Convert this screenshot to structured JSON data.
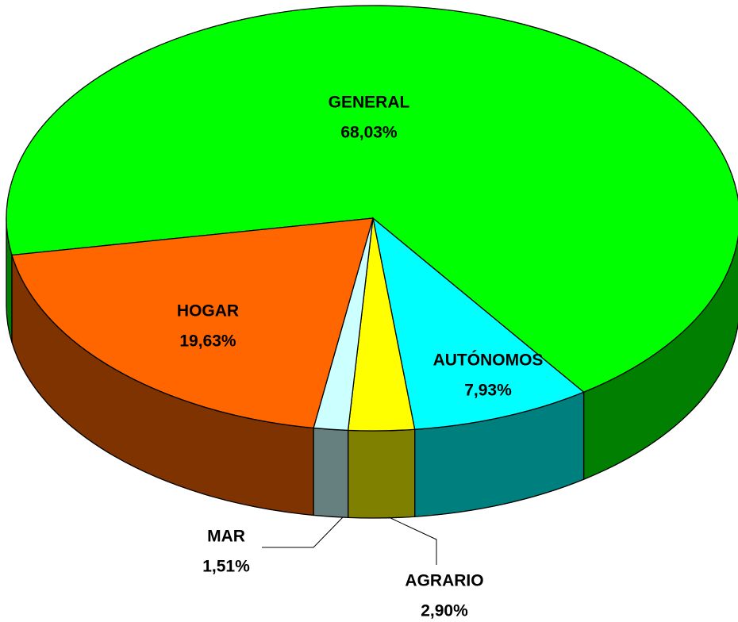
{
  "chart_data": {
    "type": "pie3d",
    "categories": [
      "GENERAL",
      "AUTÓNOMOS",
      "AGRARIO",
      "MAR",
      "HOGAR"
    ],
    "values": [
      68.03,
      7.93,
      2.9,
      1.51,
      19.63
    ],
    "value_labels": [
      "68,03%",
      "7,93%",
      "2,90%",
      "1,51%",
      "19,63%"
    ],
    "colors": [
      "#00ff00",
      "#00ffff",
      "#ffff00",
      "#ccffff",
      "#ff6600"
    ]
  }
}
